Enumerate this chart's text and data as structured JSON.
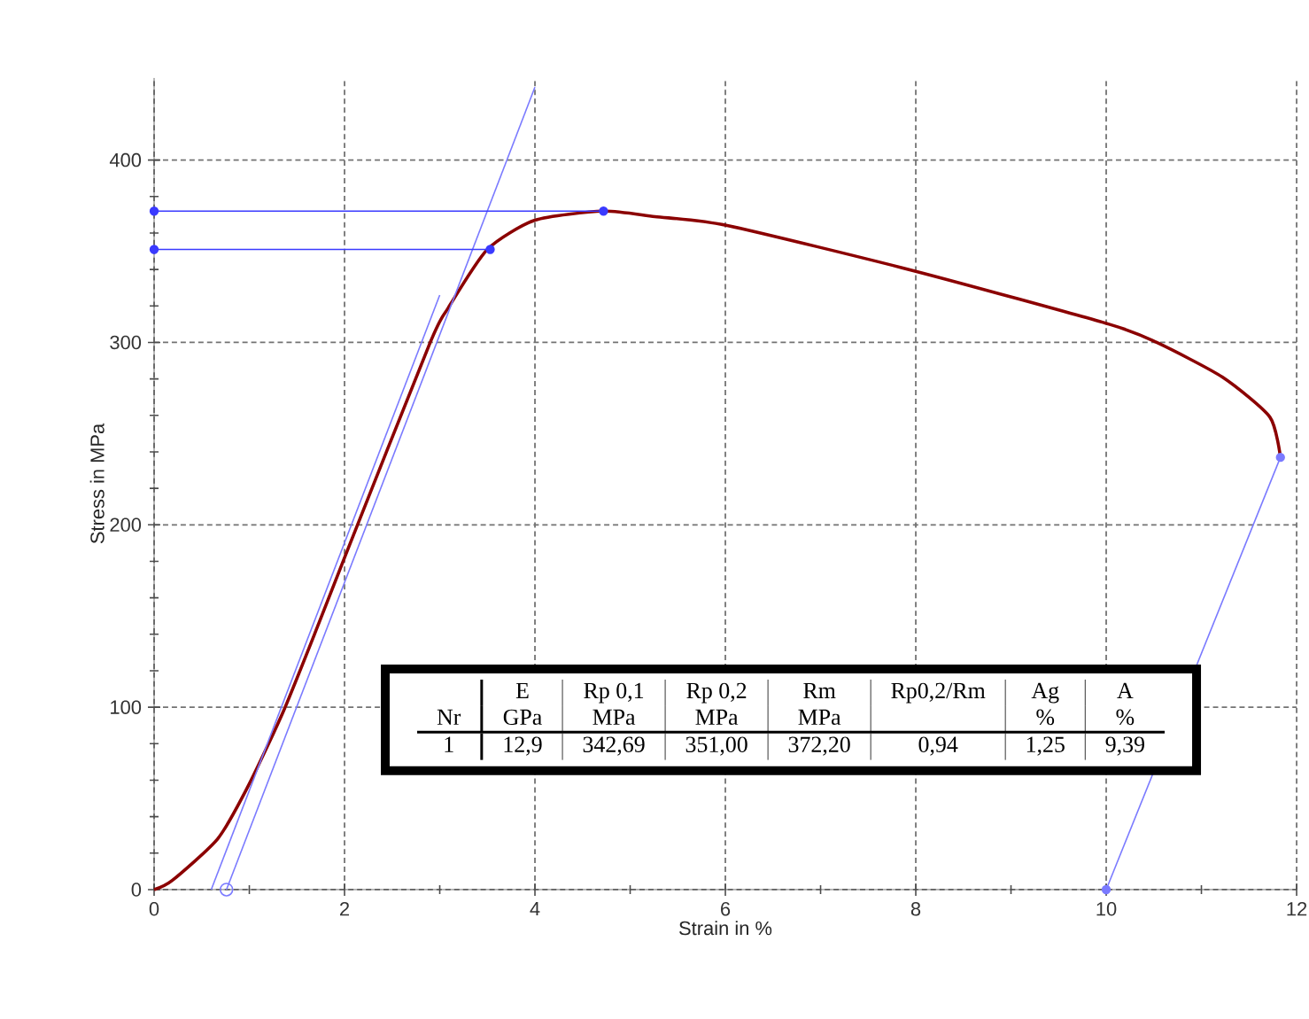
{
  "chart_data": {
    "type": "line",
    "xlabel": "Strain in %",
    "ylabel": "Stress in MPa",
    "xlim": [
      0,
      12
    ],
    "ylim": [
      0,
      445
    ],
    "xticks": [
      0,
      2,
      4,
      6,
      8,
      10,
      12
    ],
    "yticks": [
      0,
      100,
      200,
      300,
      400
    ],
    "grid": true,
    "marker": "none",
    "series": [
      {
        "color": "#8b0000",
        "x": [
          0,
          0.19,
          0.67,
          0.99,
          1.36,
          1.73,
          2.0,
          2.9,
          3.09,
          3.5,
          4.0,
          4.72,
          5.26,
          6.03,
          8.0,
          10.03,
          10.53,
          11.22,
          11.72,
          11.83
        ],
        "values": [
          0,
          5,
          28,
          57,
          98,
          146,
          182,
          300,
          319,
          351,
          367,
          372,
          369,
          364,
          339,
          310,
          300,
          281,
          259,
          237
        ]
      },
      {
        "color": "#7a7aff",
        "x": [
          0.6,
          3.0
        ],
        "values": [
          0,
          326
        ]
      },
      {
        "color": "#7a7aff",
        "x": [
          0.76,
          4.0
        ],
        "values": [
          0,
          440
        ]
      },
      {
        "color": "#3a3aff",
        "x": [
          0,
          3.53
        ],
        "values": [
          351,
          351
        ],
        "marker": "circle"
      },
      {
        "color": "#3a3aff",
        "x": [
          0,
          4.72
        ],
        "values": [
          372,
          372
        ],
        "marker": "circle"
      },
      {
        "color": "#7a7aff",
        "x": [
          10,
          11.83
        ],
        "values": [
          0,
          237
        ],
        "marker": "circle"
      },
      {
        "type": "scatter",
        "color": "#7a7aff",
        "x": [
          0.76
        ],
        "values": [
          0
        ],
        "marker": "circle"
      }
    ],
    "annotations": [
      "E",
      "Rp 0,1",
      "Rp 0,2",
      "Rm",
      "Rp0,2/Rm",
      "Ag",
      "A",
      "Nr",
      "GPa",
      "MPa",
      "MPa",
      "MPa",
      "%",
      "%",
      "1",
      "12,9",
      "342,69",
      "351,00",
      "372,20",
      "0,94",
      "1,25",
      "9,39"
    ]
  }
}
